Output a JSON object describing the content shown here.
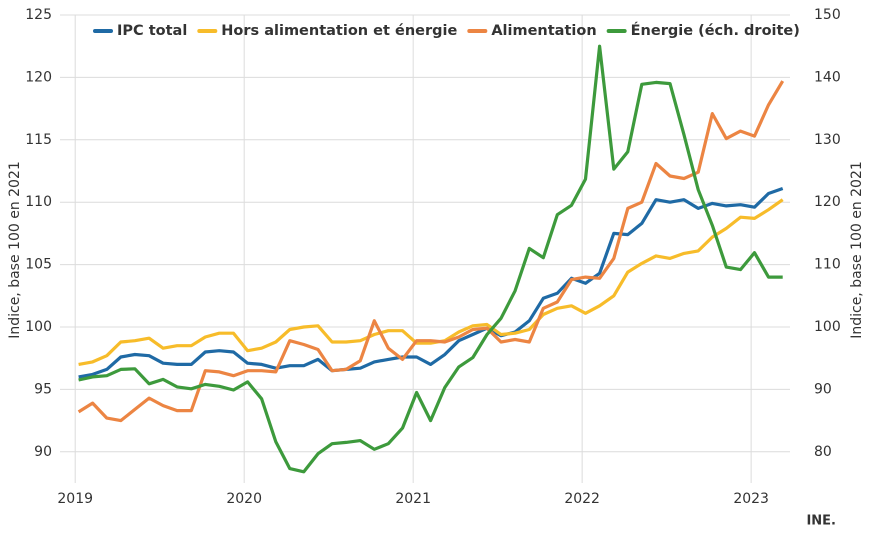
{
  "chart_data": {
    "type": "line",
    "y_label": "Indice, base 100 en 2021",
    "y2_label": "Indice, base 100 en 2021",
    "source": "INE.",
    "x": [
      2019.02,
      2019.103,
      2019.187,
      2019.27,
      2019.353,
      2019.437,
      2019.52,
      2019.603,
      2019.687,
      2019.77,
      2019.853,
      2019.937,
      2020.02,
      2020.103,
      2020.187,
      2020.27,
      2020.353,
      2020.437,
      2020.52,
      2020.603,
      2020.687,
      2020.77,
      2020.853,
      2020.937,
      2021.02,
      2021.103,
      2021.187,
      2021.27,
      2021.353,
      2021.437,
      2021.52,
      2021.603,
      2021.687,
      2021.77,
      2021.853,
      2021.937,
      2022.02,
      2022.103,
      2022.187,
      2022.27,
      2022.353,
      2022.437,
      2022.52,
      2022.603,
      2022.687,
      2022.77,
      2022.853,
      2022.937,
      2023.02,
      2023.103,
      2023.187
    ],
    "series": [
      {
        "name": "IPC total",
        "color": "#1f6aa5",
        "values": [
          96.0,
          96.2,
          96.6,
          97.6,
          97.8,
          97.7,
          97.1,
          97.0,
          97.0,
          98.0,
          98.1,
          98.0,
          97.1,
          97.0,
          96.7,
          96.9,
          96.9,
          97.4,
          96.5,
          96.6,
          96.7,
          97.2,
          97.4,
          97.6,
          97.6,
          97.0,
          97.8,
          98.9,
          99.4,
          99.9,
          99.3,
          99.6,
          100.5,
          102.3,
          102.7,
          103.9,
          103.5,
          104.3,
          107.5,
          107.4,
          108.3,
          110.2,
          110.0,
          110.2,
          109.5,
          109.9,
          109.7,
          109.8,
          109.6,
          110.7,
          111.1
        ]
      },
      {
        "name": "Hors alimentation et énergie",
        "color": "#f7bc2a",
        "values": [
          97.0,
          97.2,
          97.7,
          98.8,
          98.9,
          99.1,
          98.3,
          98.5,
          98.5,
          99.2,
          99.5,
          99.5,
          98.1,
          98.3,
          98.8,
          99.8,
          100.0,
          100.1,
          98.8,
          98.8,
          98.9,
          99.4,
          99.7,
          99.7,
          98.7,
          98.7,
          98.9,
          99.6,
          100.1,
          100.2,
          99.4,
          99.5,
          99.8,
          101.0,
          101.5,
          101.7,
          101.1,
          101.7,
          102.5,
          104.4,
          105.1,
          105.7,
          105.5,
          105.9,
          106.1,
          107.2,
          107.9,
          108.8,
          108.7,
          109.4,
          110.2
        ]
      },
      {
        "name": "Alimentation",
        "color": "#ec8543",
        "values": [
          93.2,
          93.9,
          92.7,
          92.5,
          93.4,
          94.3,
          93.7,
          93.3,
          93.3,
          96.5,
          96.4,
          96.1,
          96.5,
          96.5,
          96.4,
          98.9,
          98.6,
          98.2,
          96.5,
          96.6,
          97.3,
          100.5,
          98.3,
          97.4,
          98.9,
          98.9,
          98.8,
          99.2,
          99.8,
          99.9,
          98.8,
          99.0,
          98.8,
          101.5,
          102.0,
          103.8,
          104.0,
          103.9,
          105.5,
          109.5,
          110.0,
          113.1,
          112.1,
          111.9,
          112.4,
          117.1,
          115.1,
          115.7,
          115.3,
          117.8,
          119.7
        ]
      },
      {
        "name": "Énergie (éch. droite)",
        "color": "#3d9a3c",
        "axis": "y2",
        "values": [
          91.5,
          92.0,
          92.2,
          93.2,
          93.3,
          90.9,
          91.6,
          90.4,
          90.1,
          90.8,
          90.5,
          89.9,
          91.2,
          88.5,
          81.6,
          77.3,
          76.8,
          79.7,
          81.3,
          81.5,
          81.8,
          80.4,
          81.3,
          83.8,
          89.5,
          85.0,
          90.3,
          93.6,
          95.1,
          98.8,
          101.4,
          105.8,
          112.6,
          111.1,
          118.0,
          119.5,
          123.7,
          145.0,
          125.3,
          128.1,
          138.9,
          139.2,
          139.0,
          130.8,
          122.0,
          116.3,
          109.6,
          109.2,
          111.9,
          108.0,
          108.0
        ]
      }
    ],
    "xlim": [
      2018.91,
      2023.23
    ],
    "xticks": [
      2019,
      2020,
      2021,
      2022,
      2023
    ],
    "ylim": [
      87.5,
      125
    ],
    "yticks": [
      90,
      95,
      100,
      105,
      110,
      115,
      120,
      125
    ],
    "y2lim": [
      75,
      150
    ],
    "y2ticks": [
      80,
      90,
      100,
      110,
      120,
      130,
      140,
      150
    ],
    "grid": true,
    "legend": "top"
  }
}
